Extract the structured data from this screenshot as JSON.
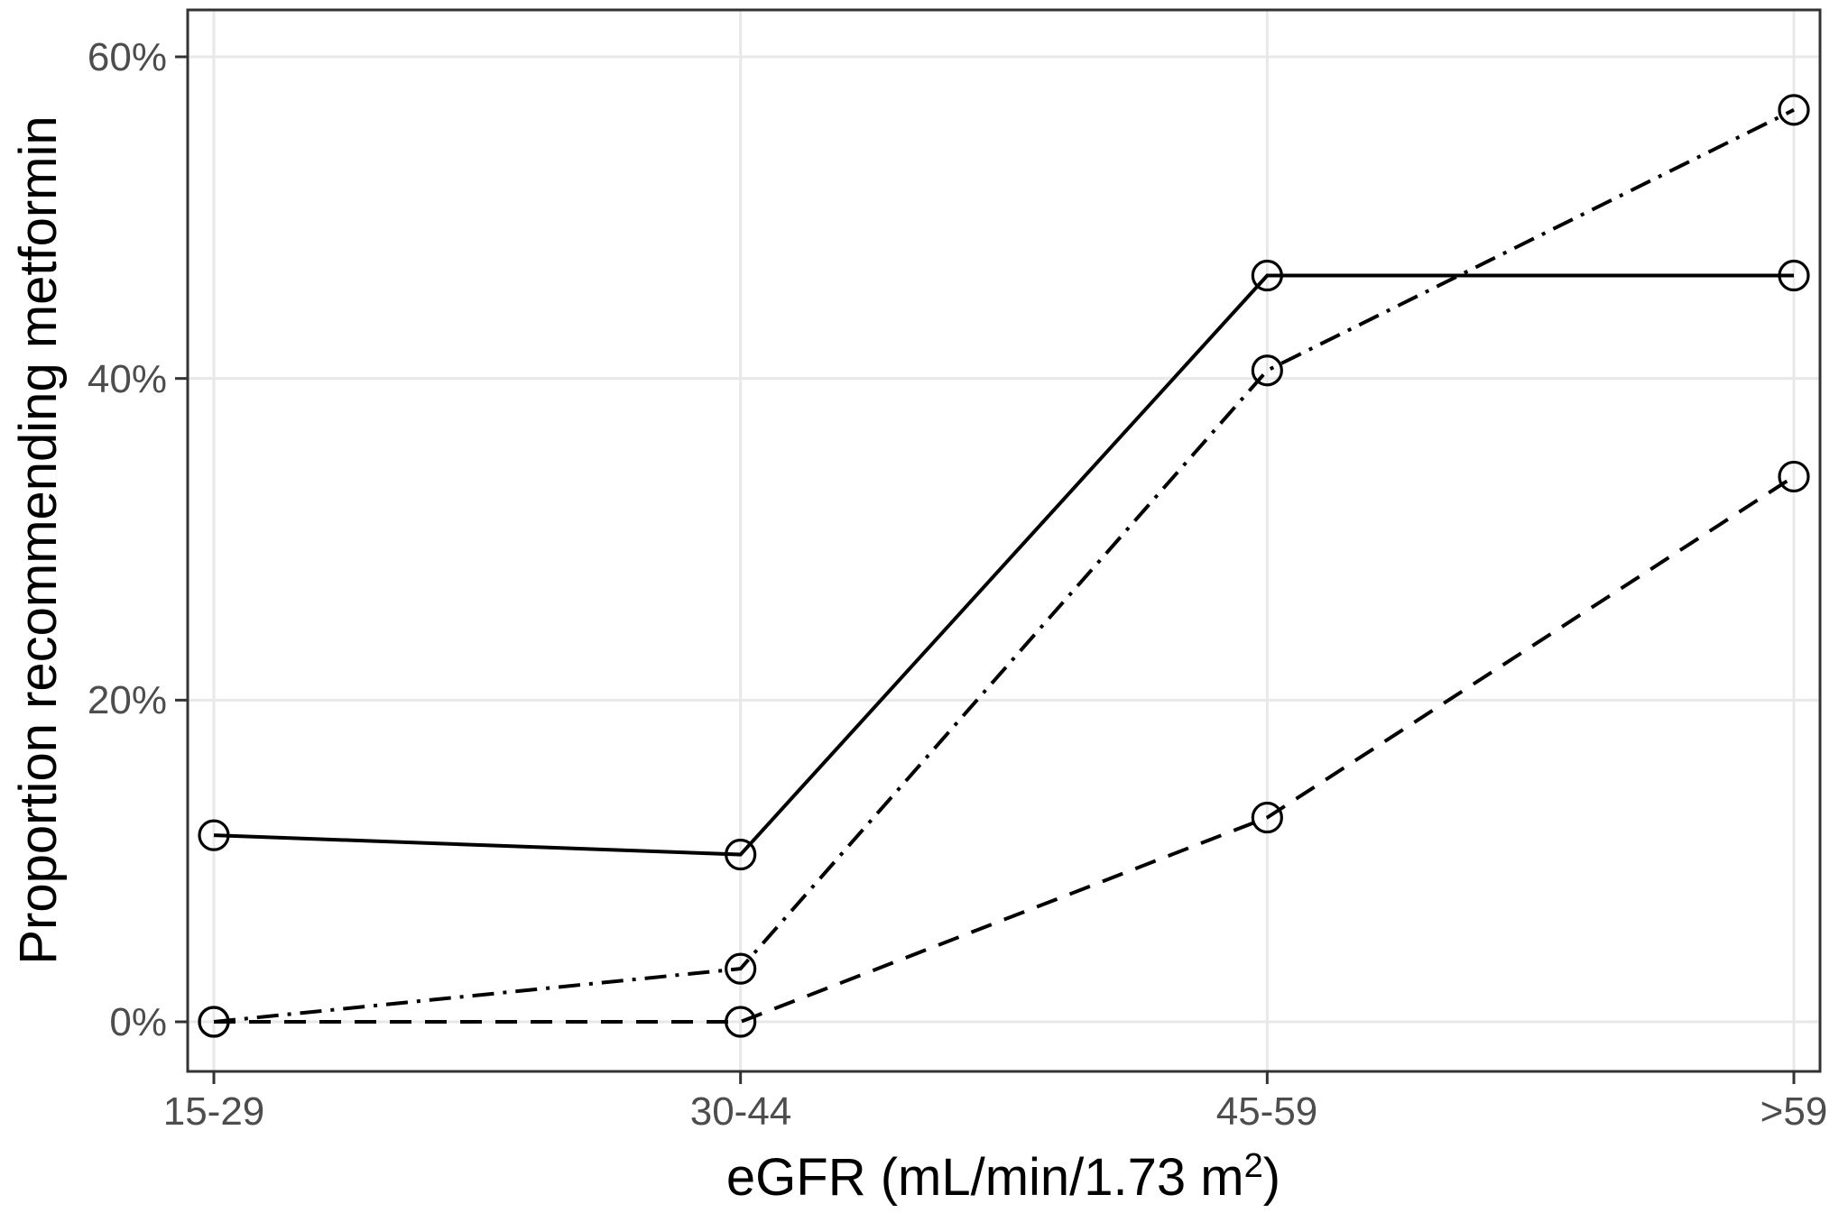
{
  "chart_data": {
    "type": "line",
    "title": "",
    "categories": [
      "15-29",
      "30-44",
      "45-59",
      ">59"
    ],
    "series": [
      {
        "name": "solid",
        "line_style": "solid",
        "marker": "open-circle",
        "values": [
          11.6,
          10.4,
          46.4,
          46.4
        ]
      },
      {
        "name": "dash-dot",
        "line_style": "dash-dot",
        "marker": "open-circle",
        "values": [
          0.0,
          3.3,
          40.5,
          56.7
        ]
      },
      {
        "name": "dashed",
        "line_style": "dashed",
        "marker": "open-circle",
        "values": [
          0.0,
          0.0,
          12.7,
          33.9
        ]
      }
    ],
    "xlabel": {
      "prefix": "eGFR (mL/min/1.73 m",
      "superscript": "2",
      "suffix": ")"
    },
    "ylabel": "Proportion recommending metformin",
    "y_ticks": [
      {
        "label": "0%",
        "value": 0
      },
      {
        "label": "20%",
        "value": 20
      },
      {
        "label": "40%",
        "value": 40
      },
      {
        "label": "60%",
        "value": 60
      }
    ],
    "ylim": [
      -3.1,
      62.9
    ],
    "grid": "major-only",
    "legend": "none"
  },
  "style": {
    "background": "#ffffff",
    "series_color": "#000000",
    "grid_color": "#e8e8e8",
    "panel_border_color": "#333333",
    "tick_color": "#333333",
    "tick_label_color": "#4d4d4d",
    "axis_title_color": "#000000"
  }
}
